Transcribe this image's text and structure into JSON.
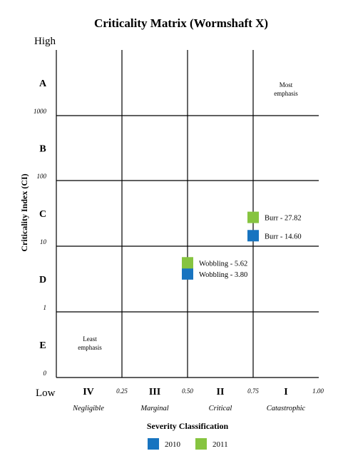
{
  "chart_data": {
    "type": "scatter",
    "title": "Criticality Matrix (Wormshaft X)",
    "xlabel": "Severity Classification",
    "ylabel": "Criticality Index (CI)",
    "y_high_label": "High",
    "y_low_label": "Low",
    "x_ticks": [
      "0.25",
      "0.50",
      "0.75",
      "1.00"
    ],
    "y_ticks": [
      "0",
      "1",
      "10",
      "100",
      "1000"
    ],
    "rows": [
      "A",
      "B",
      "C",
      "D",
      "E"
    ],
    "columns": [
      {
        "numeral": "IV",
        "name": "Negligible"
      },
      {
        "numeral": "III",
        "name": "Marginal"
      },
      {
        "numeral": "II",
        "name": "Critical"
      },
      {
        "numeral": "I",
        "name": "Catastrophic"
      }
    ],
    "annotations": {
      "most": [
        "Most",
        "emphasis"
      ],
      "least": [
        "Least",
        "emphasis"
      ]
    },
    "series": [
      {
        "name": "2010",
        "color": "#1874c0",
        "points": [
          {
            "label": "Burr - 14.60",
            "x": 0.75,
            "y": 14.6
          },
          {
            "label": "Wobbling - 3.80",
            "x": 0.5,
            "y": 3.8
          }
        ]
      },
      {
        "name": "2011",
        "color": "#86c440",
        "points": [
          {
            "label": "Burr - 27.82",
            "x": 0.75,
            "y": 27.82
          },
          {
            "label": "Wobbling - 5.62",
            "x": 0.5,
            "y": 5.62
          }
        ]
      }
    ],
    "legend_position": "bottom"
  }
}
